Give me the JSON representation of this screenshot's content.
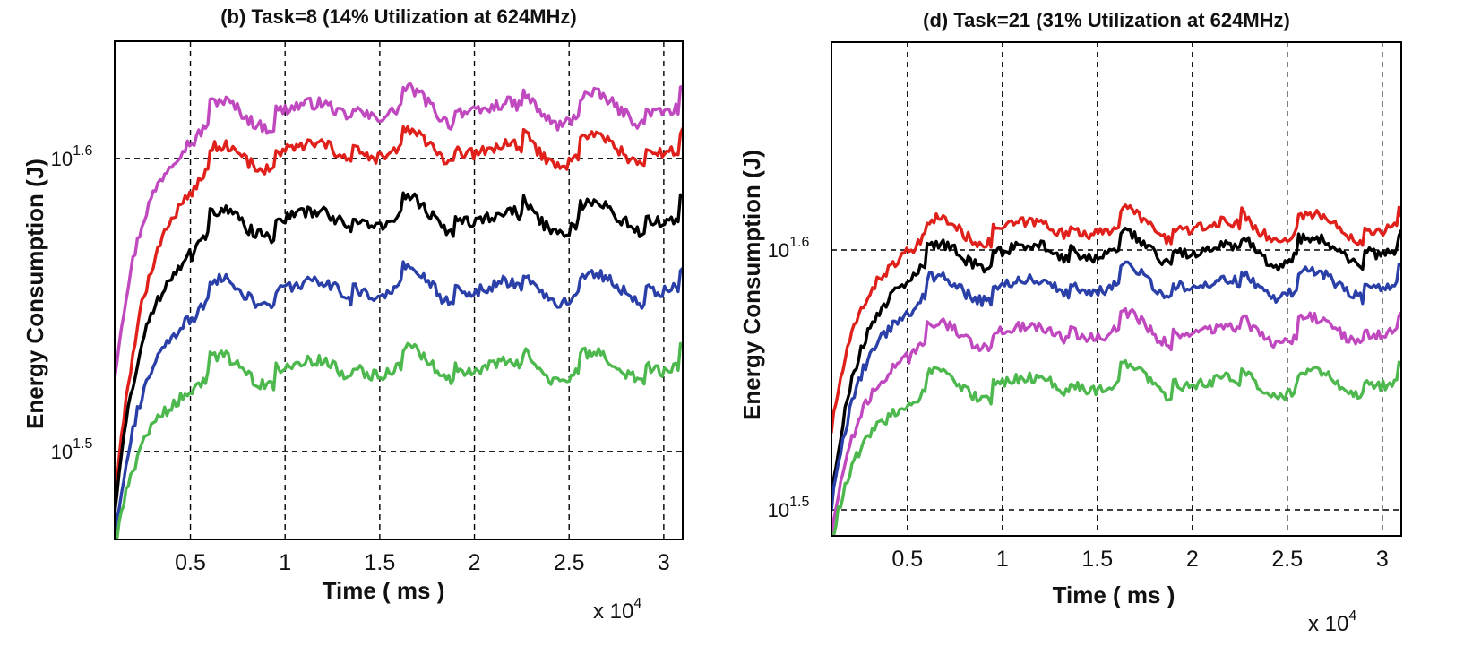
{
  "chart_data": [
    {
      "type": "line",
      "title": "(b) Task=8 (14% Utilization at 624MHz)",
      "xlabel": "Time ( ms )",
      "ylabel": "Energy Consumption (J)",
      "x_multiplier_label": "x 10",
      "x_multiplier_exp": "4",
      "xlim": [
        0.1,
        3.1
      ],
      "ylim_log10": [
        1.47,
        1.64
      ],
      "xticks": [
        0.5,
        1,
        1.5,
        2,
        2.5,
        3
      ],
      "xtick_labels": [
        "0.5",
        "1",
        "1.5",
        "2",
        "2.5",
        "3"
      ],
      "yticks_log10": [
        1.5,
        1.6
      ],
      "ytick_base": "10",
      "ytick_exps": [
        "1.5",
        "1.6"
      ],
      "series": [
        {
          "name": "magenta",
          "color": "#c049c0",
          "start": 1.525,
          "steady": 1.615
        },
        {
          "name": "red",
          "color": "#e0201b",
          "start": 1.48,
          "steady": 1.601
        },
        {
          "name": "black",
          "color": "#000000",
          "start": 1.479,
          "steady": 1.578
        },
        {
          "name": "blue",
          "color": "#2a40a8",
          "start": 1.47,
          "steady": 1.554
        },
        {
          "name": "green",
          "color": "#4db84d",
          "start": 1.466,
          "steady": 1.527
        }
      ]
    },
    {
      "type": "line",
      "title": "(d) Task=21 (31% Utilization at 624MHz)",
      "xlabel": "Time ( ms )",
      "ylabel": "Energy Consumption (J)",
      "x_multiplier_label": "x 10",
      "x_multiplier_exp": "4",
      "xlim": [
        0.1,
        3.1
      ],
      "ylim_log10": [
        1.49,
        1.68
      ],
      "xticks": [
        0.5,
        1,
        1.5,
        2,
        2.5,
        3
      ],
      "xtick_labels": [
        "0.5",
        "1",
        "1.5",
        "2",
        "2.5",
        "3"
      ],
      "yticks_log10": [
        1.5,
        1.6
      ],
      "ytick_base": "10",
      "ytick_exps": [
        "1.5",
        "1.6"
      ],
      "series": [
        {
          "name": "red",
          "color": "#e0201b",
          "start": 1.53,
          "steady": 1.607
        },
        {
          "name": "black",
          "color": "#000000",
          "start": 1.505,
          "steady": 1.598
        },
        {
          "name": "blue",
          "color": "#2a40a8",
          "start": 1.5,
          "steady": 1.585
        },
        {
          "name": "magenta",
          "color": "#c049c0",
          "start": 1.49,
          "steady": 1.567
        },
        {
          "name": "green",
          "color": "#4db84d",
          "start": 1.487,
          "steady": 1.547
        }
      ]
    }
  ]
}
